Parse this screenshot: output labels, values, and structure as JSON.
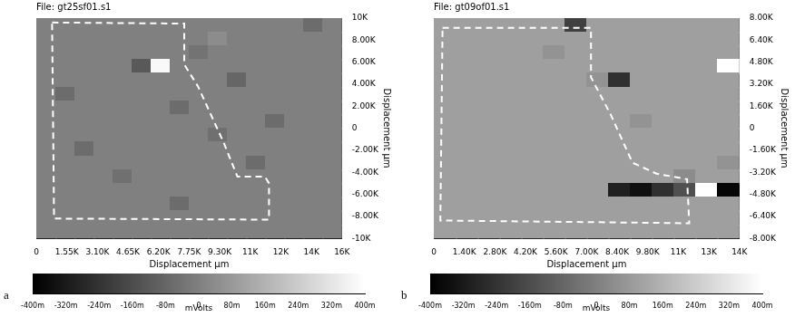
{
  "chart_data": [
    {
      "type": "heatmap",
      "panel": "a",
      "title": "File: gt25sf01.s1",
      "x_label": "Displacement µm",
      "y_label": "Displacement µm",
      "grid": false,
      "xlim": [
        0,
        15500
      ],
      "xticks": [
        0,
        {
          "value": 1550,
          "label": "1.55K"
        },
        {
          "value": 3100,
          "label": "3.10K"
        },
        {
          "value": 4650,
          "label": "4.65K"
        },
        {
          "value": 6200,
          "label": "6.20K"
        },
        {
          "value": 7750,
          "label": "7.75K"
        },
        {
          "value": 9300,
          "label": "9.30K"
        },
        {
          "value": 10850,
          "label": "11K"
        },
        {
          "value": 12400,
          "label": "12K"
        },
        {
          "value": 13950,
          "label": "14K"
        },
        {
          "value": 15500,
          "label": "16K"
        }
      ],
      "ylim": [
        -10000,
        10000
      ],
      "yticks": [
        {
          "value": -10000,
          "label": "-10K"
        },
        {
          "value": -8000,
          "label": "-8.00K"
        },
        {
          "value": -6000,
          "label": "-6.00K"
        },
        {
          "value": -4000,
          "label": "-4.00K"
        },
        {
          "value": -2000,
          "label": "-2.00K"
        },
        0,
        {
          "value": 2000,
          "label": "2.00K"
        },
        {
          "value": 4000,
          "label": "4.00K"
        },
        {
          "value": 6000,
          "label": "6.00K"
        },
        {
          "value": 8000,
          "label": "8.00K"
        },
        {
          "value": 10000,
          "label": "10K"
        }
      ],
      "cells": [
        [
          0,
          0,
          0,
          0,
          0,
          0,
          0,
          0,
          0,
          0,
          0,
          0,
          0,
          0,
          -60,
          0
        ],
        [
          0,
          0,
          0,
          0,
          0,
          0,
          0,
          0,
          0,
          40,
          0,
          0,
          0,
          0,
          0,
          0
        ],
        [
          0,
          0,
          0,
          0,
          0,
          0,
          0,
          0,
          -40,
          0,
          0,
          0,
          0,
          0,
          0,
          0
        ],
        [
          0,
          0,
          0,
          0,
          0,
          -120,
          380,
          0,
          0,
          0,
          0,
          0,
          0,
          0,
          0,
          0
        ],
        [
          0,
          0,
          0,
          0,
          0,
          0,
          0,
          0,
          0,
          0,
          -80,
          0,
          0,
          0,
          0,
          0
        ],
        [
          0,
          -60,
          0,
          0,
          0,
          0,
          0,
          0,
          0,
          0,
          0,
          0,
          0,
          0,
          0,
          0
        ],
        [
          0,
          0,
          0,
          0,
          0,
          0,
          0,
          -60,
          0,
          0,
          0,
          0,
          0,
          0,
          0,
          0
        ],
        [
          0,
          0,
          0,
          0,
          0,
          0,
          0,
          0,
          0,
          0,
          0,
          0,
          -60,
          0,
          0,
          0
        ],
        [
          0,
          0,
          0,
          0,
          0,
          0,
          0,
          0,
          0,
          -50,
          0,
          0,
          0,
          0,
          0,
          0
        ],
        [
          0,
          0,
          -60,
          0,
          0,
          0,
          0,
          0,
          0,
          0,
          0,
          0,
          0,
          0,
          0,
          0
        ],
        [
          0,
          0,
          0,
          0,
          0,
          0,
          0,
          0,
          0,
          0,
          0,
          -60,
          0,
          0,
          0,
          0
        ],
        [
          0,
          0,
          0,
          0,
          -50,
          0,
          0,
          0,
          0,
          0,
          0,
          0,
          0,
          0,
          0,
          0
        ],
        [
          0,
          0,
          0,
          0,
          0,
          0,
          0,
          0,
          0,
          0,
          0,
          0,
          0,
          0,
          0,
          0
        ],
        [
          0,
          0,
          0,
          0,
          0,
          0,
          0,
          -60,
          0,
          0,
          0,
          0,
          0,
          0,
          0,
          0
        ],
        [
          0,
          0,
          0,
          0,
          0,
          0,
          0,
          0,
          0,
          0,
          0,
          0,
          0,
          0,
          0,
          0
        ],
        [
          0,
          0,
          0,
          0,
          0,
          0,
          0,
          0,
          0,
          0,
          0,
          0,
          0,
          0,
          0,
          0
        ]
      ],
      "colorbar": {
        "range": [
          -400,
          400
        ],
        "label": "mVolts",
        "ticks": [
          {
            "value": -400,
            "label": "-400m"
          },
          {
            "value": -320,
            "label": "-320m"
          },
          {
            "value": -240,
            "label": "-240m"
          },
          {
            "value": -160,
            "label": "-160m"
          },
          {
            "value": -80,
            "label": "-80m"
          },
          0,
          {
            "value": 80,
            "label": "80m"
          },
          {
            "value": 160,
            "label": "160m"
          },
          {
            "value": 240,
            "label": "240m"
          },
          {
            "value": 320,
            "label": "320m"
          },
          {
            "value": 400,
            "label": "400m"
          }
        ]
      },
      "outline": {
        "color": "#ffffff",
        "line_style": "dashed",
        "x": [
          800,
          7500,
          7500,
          8200,
          9500,
          10200,
          11600,
          11800,
          11800,
          900,
          800
        ],
        "y": [
          9600,
          9500,
          5800,
          3800,
          -1300,
          -4400,
          -4400,
          -5000,
          -8300,
          -8200,
          9600
        ]
      }
    },
    {
      "type": "heatmap",
      "panel": "b",
      "title": "File: gt09of01.s1",
      "x_label": "Displacement µm",
      "y_label": "Displacement µm",
      "grid": false,
      "xlim": [
        0,
        14000
      ],
      "xticks": [
        0,
        {
          "value": 1400,
          "label": "1.40K"
        },
        {
          "value": 2800,
          "label": "2.80K"
        },
        {
          "value": 4200,
          "label": "4.20K"
        },
        {
          "value": 5600,
          "label": "5.60K"
        },
        {
          "value": 7000,
          "label": "7.00K"
        },
        {
          "value": 8400,
          "label": "8.40K"
        },
        {
          "value": 9800,
          "label": "9.80K"
        },
        {
          "value": 11200,
          "label": "11K"
        },
        {
          "value": 12600,
          "label": "13K"
        },
        {
          "value": 14000,
          "label": "14K"
        }
      ],
      "ylim": [
        -8000,
        8000
      ],
      "yticks": [
        {
          "value": -8000,
          "label": "-8.00K"
        },
        {
          "value": -6400,
          "label": "-6.40K"
        },
        {
          "value": -4800,
          "label": "-4.80K"
        },
        {
          "value": -3200,
          "label": "-3.20K"
        },
        {
          "value": -1600,
          "label": "-1.60K"
        },
        0,
        {
          "value": 1600,
          "label": "1.60K"
        },
        {
          "value": 3200,
          "label": "3.20K"
        },
        {
          "value": 4800,
          "label": "4.80K"
        },
        {
          "value": 6400,
          "label": "6.40K"
        },
        {
          "value": 8000,
          "label": "8.00K"
        }
      ],
      "cells": [
        [
          100,
          100,
          100,
          100,
          100,
          100,
          -200,
          100,
          100,
          100,
          100,
          100,
          100,
          100
        ],
        [
          100,
          100,
          100,
          100,
          100,
          100,
          100,
          100,
          100,
          100,
          100,
          100,
          100,
          100
        ],
        [
          100,
          100,
          100,
          100,
          100,
          60,
          100,
          100,
          100,
          100,
          100,
          100,
          100,
          100
        ],
        [
          100,
          100,
          100,
          100,
          100,
          100,
          100,
          100,
          100,
          100,
          100,
          100,
          100,
          400
        ],
        [
          100,
          100,
          100,
          100,
          100,
          100,
          100,
          60,
          -250,
          100,
          100,
          100,
          100,
          100
        ],
        [
          100,
          100,
          100,
          100,
          100,
          100,
          100,
          100,
          100,
          100,
          100,
          100,
          100,
          100
        ],
        [
          100,
          100,
          100,
          100,
          100,
          100,
          100,
          100,
          100,
          100,
          100,
          100,
          100,
          100
        ],
        [
          100,
          100,
          100,
          100,
          100,
          100,
          100,
          100,
          100,
          60,
          100,
          100,
          100,
          100
        ],
        [
          100,
          100,
          100,
          100,
          100,
          100,
          100,
          100,
          100,
          100,
          100,
          100,
          100,
          100
        ],
        [
          100,
          100,
          100,
          100,
          100,
          100,
          100,
          100,
          100,
          100,
          100,
          100,
          100,
          100
        ],
        [
          100,
          100,
          100,
          100,
          100,
          100,
          100,
          100,
          100,
          100,
          100,
          100,
          100,
          60
        ],
        [
          100,
          100,
          100,
          100,
          100,
          100,
          100,
          100,
          100,
          100,
          100,
          40,
          100,
          100
        ],
        [
          100,
          100,
          100,
          100,
          100,
          100,
          100,
          100,
          -300,
          -350,
          -250,
          -150,
          400,
          -380
        ],
        [
          100,
          100,
          100,
          100,
          100,
          100,
          100,
          100,
          100,
          100,
          100,
          100,
          100,
          100
        ],
        [
          100,
          100,
          100,
          100,
          100,
          100,
          100,
          100,
          100,
          100,
          100,
          100,
          100,
          100
        ],
        [
          100,
          100,
          100,
          100,
          100,
          100,
          100,
          100,
          100,
          100,
          100,
          100,
          100,
          100
        ]
      ],
      "colorbar": {
        "range": [
          -400,
          400
        ],
        "label": "mVolts",
        "ticks": [
          {
            "value": -400,
            "label": "-400m"
          },
          {
            "value": -320,
            "label": "-320m"
          },
          {
            "value": -240,
            "label": "-240m"
          },
          {
            "value": -160,
            "label": "-160m"
          },
          {
            "value": -80,
            "label": "-80m"
          },
          0,
          {
            "value": 80,
            "label": "80m"
          },
          {
            "value": 160,
            "label": "160m"
          },
          {
            "value": 240,
            "label": "240m"
          },
          {
            "value": 320,
            "label": "320m"
          },
          {
            "value": 400,
            "label": "400m"
          }
        ]
      },
      "outline": {
        "color": "#ffffff",
        "line_style": "dashed",
        "x": [
          400,
          7200,
          7200,
          8100,
          9100,
          10200,
          11600,
          11700,
          300,
          400
        ],
        "y": [
          7300,
          7300,
          3700,
          1000,
          -2500,
          -3300,
          -3700,
          -6900,
          -6700,
          7300
        ]
      }
    }
  ]
}
